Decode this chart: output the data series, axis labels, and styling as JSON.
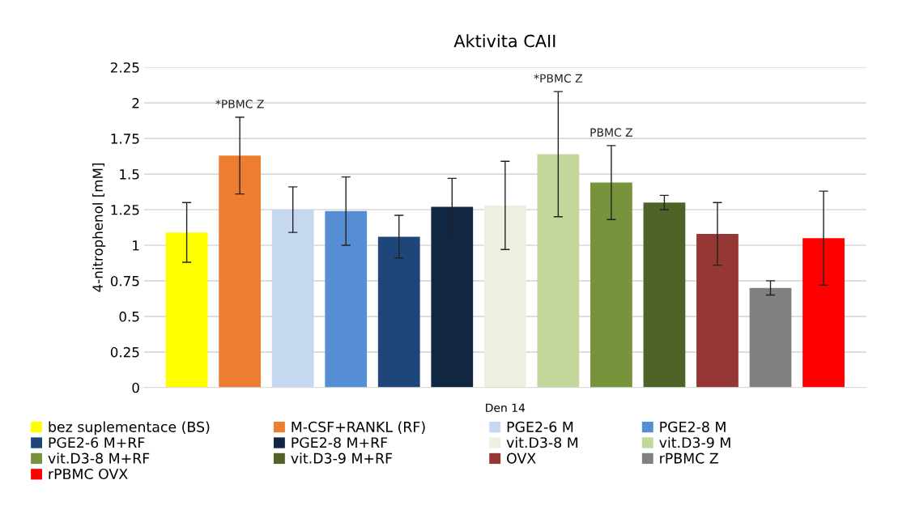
{
  "chart_data": {
    "type": "bar",
    "title": "Aktivita CAII",
    "ylabel": "4-nitrophenol [mM]",
    "categories": [
      "Den 14"
    ],
    "ylim": [
      0,
      2.25
    ],
    "yticks": [
      0,
      0.25,
      0.5,
      0.75,
      1,
      1.25,
      1.5,
      1.75,
      2,
      2.25
    ],
    "grid": "y",
    "legend": "bottom",
    "series": [
      {
        "name": "bez suplementace (BS)",
        "color": "#ffff00",
        "values": [
          1.09
        ],
        "errors": [
          0.21
        ]
      },
      {
        "name": "M-CSF+RANKL (RF)",
        "color": "#ed7d31",
        "values": [
          1.63
        ],
        "errors": [
          0.27
        ]
      },
      {
        "name": "PGE2-6 M",
        "color": "#c5d8f0",
        "values": [
          1.25
        ],
        "errors": [
          0.16
        ]
      },
      {
        "name": "PGE2-8 M",
        "color": "#558ed5",
        "values": [
          1.24
        ],
        "errors": [
          0.24
        ]
      },
      {
        "name": "PGE2-6 M+RF",
        "color": "#1f4679",
        "values": [
          1.06
        ],
        "errors": [
          0.15
        ]
      },
      {
        "name": "PGE2-8 M+RF",
        "color": "#112640",
        "values": [
          1.27
        ],
        "errors": [
          0.2
        ]
      },
      {
        "name": "vit.D3-8 M",
        "color": "#ebf0e0",
        "values": [
          1.28
        ],
        "errors": [
          0.31
        ]
      },
      {
        "name": "vit.D3-9 M",
        "color": "#c3d69b",
        "values": [
          1.64
        ],
        "errors": [
          0.44
        ]
      },
      {
        "name": "vit.D3-8 M+RF",
        "color": "#77933c",
        "values": [
          1.44
        ],
        "errors": [
          0.26
        ]
      },
      {
        "name": "vit.D3-9 M+RF",
        "color": "#4f6228",
        "values": [
          1.3
        ],
        "errors": [
          0.05
        ]
      },
      {
        "name": "OVX",
        "color": "#953735",
        "values": [
          1.08
        ],
        "errors": [
          0.22
        ]
      },
      {
        "name": "rPBMC Z",
        "color": "#808080",
        "values": [
          0.7
        ],
        "errors": [
          0.05
        ]
      },
      {
        "name": "rPBMC OVX",
        "color": "#ff0000",
        "values": [
          1.05
        ],
        "errors": [
          0.33
        ]
      }
    ],
    "annotations": [
      "*PBMC Z",
      "*PBMC Z",
      "PBMC Z"
    ]
  }
}
